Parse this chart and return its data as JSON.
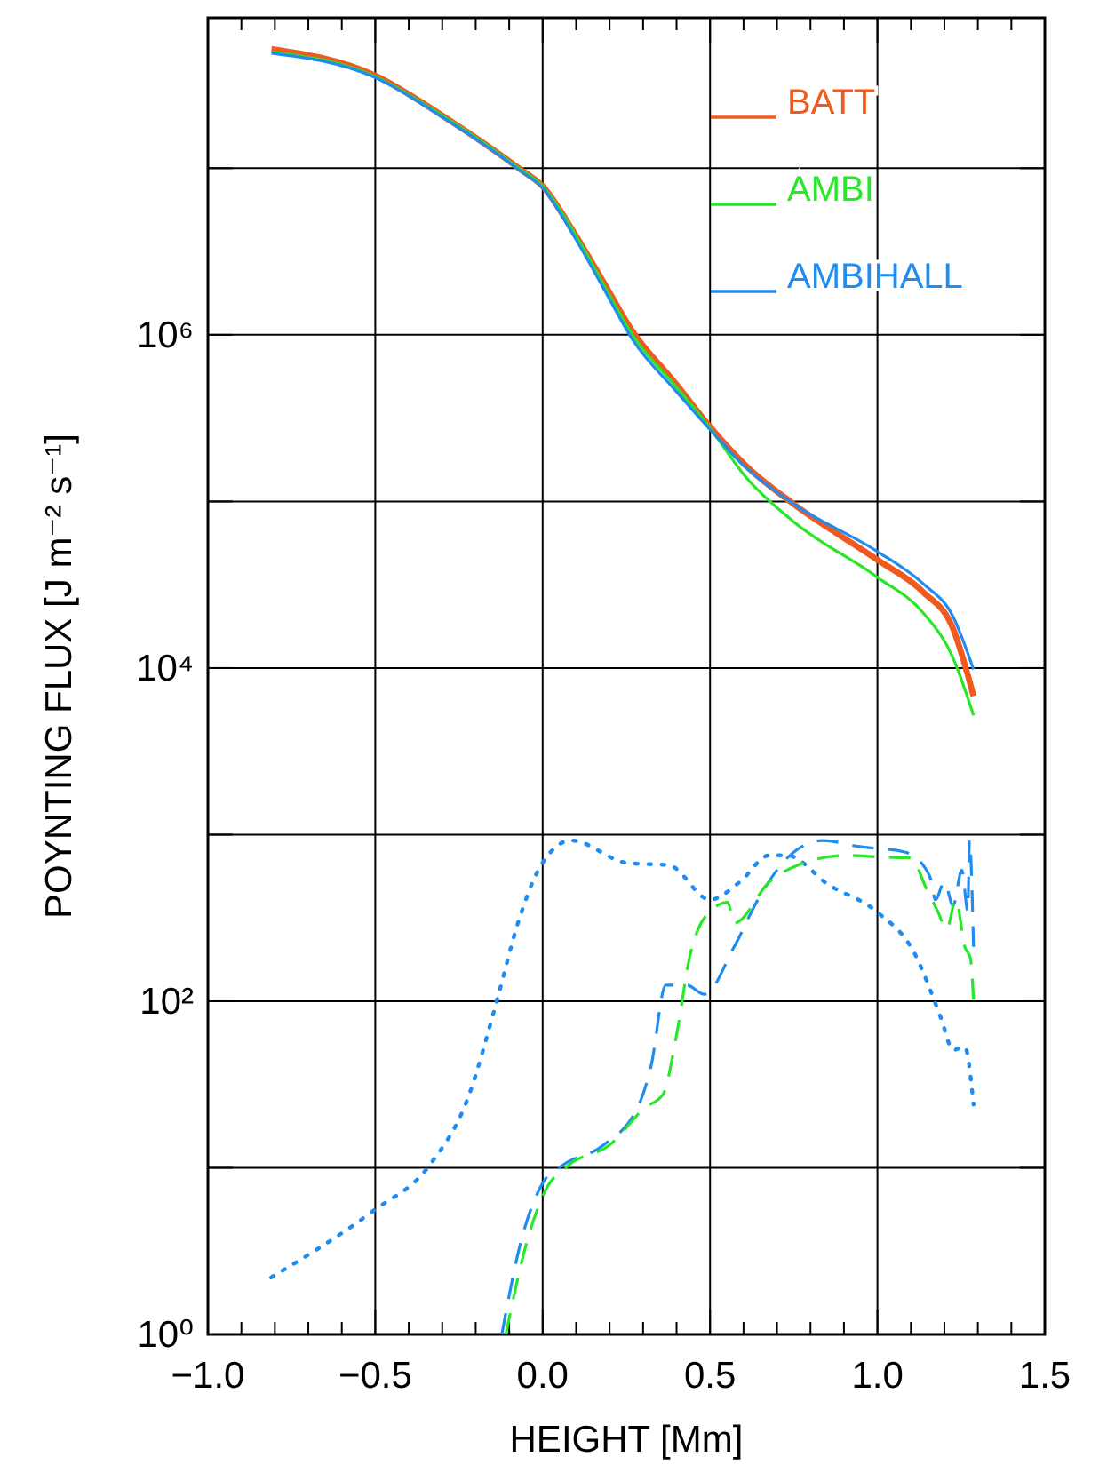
{
  "chart_data": {
    "type": "line",
    "xlabel": "HEIGHT [Mm]",
    "ylabel": "POYNTING FLUX [J m⁻² s⁻¹]",
    "log": "y",
    "grid": true,
    "legend": "top right",
    "xlim": [
      -1.0,
      1.5
    ],
    "ylim": [
      1,
      80000000
    ],
    "xticks": [
      {
        "value": -1.0,
        "label": "−1.0"
      },
      {
        "value": -0.9,
        "label": null
      },
      {
        "value": -0.8,
        "label": null
      },
      {
        "value": -0.7,
        "label": null
      },
      {
        "value": -0.6,
        "label": null
      },
      {
        "value": -0.5,
        "label": "−0.5"
      },
      {
        "value": -0.4,
        "label": null
      },
      {
        "value": -0.3,
        "label": null
      },
      {
        "value": -0.2,
        "label": null
      },
      {
        "value": -0.1,
        "label": null
      },
      {
        "value": 0,
        "label": "0.0"
      },
      {
        "value": 0.1,
        "label": null
      },
      {
        "value": 0.2,
        "label": null
      },
      {
        "value": 0.3,
        "label": null
      },
      {
        "value": 0.4,
        "label": null
      },
      {
        "value": 0.5,
        "label": "0.5"
      },
      {
        "value": 0.6,
        "label": null
      },
      {
        "value": 0.7,
        "label": null
      },
      {
        "value": 0.8,
        "label": null
      },
      {
        "value": 0.9,
        "label": null
      },
      {
        "value": 1.0,
        "label": "1.0"
      },
      {
        "value": 1.1,
        "label": null
      },
      {
        "value": 1.2,
        "label": null
      },
      {
        "value": 1.3,
        "label": null
      },
      {
        "value": 1.4,
        "label": null
      },
      {
        "value": 1.5,
        "label": "1.5"
      }
    ],
    "yticks": [
      {
        "value": 1,
        "label": "10⁰"
      },
      {
        "value": 10,
        "label": null
      },
      {
        "value": 100,
        "label": "10²"
      },
      {
        "value": 1000,
        "label": null
      },
      {
        "value": 10000,
        "label": "10⁴"
      },
      {
        "value": 100000,
        "label": null
      },
      {
        "value": 1000000,
        "label": "10⁶"
      },
      {
        "value": 10000000,
        "label": null
      }
    ],
    "series": [
      {
        "name": "BATT",
        "color": "#f05a1e",
        "line_style": "solid",
        "x": [
          -0.81,
          -0.5,
          -0.295,
          -0.065,
          0.0,
          0.094,
          0.182,
          0.271,
          0.394,
          0.5,
          0.607,
          0.748,
          1.0,
          1.137,
          1.225,
          1.287
        ],
        "values": [
          52000000,
          36000000,
          20400000,
          9800000,
          7800000,
          4100000,
          2070000,
          1030000,
          520000,
          280000,
          164000,
          97000,
          44600,
          28500,
          17400,
          6800
        ]
      },
      {
        "name": "AMBI",
        "color": "#28e628",
        "line_style": "solid",
        "x": [
          -0.81,
          -0.5,
          -0.295,
          -0.065,
          0.0,
          0.094,
          0.182,
          0.271,
          0.394,
          0.5,
          0.607,
          0.748,
          1.0,
          1.137,
          1.225,
          1.287
        ],
        "values": [
          50000000,
          35500000,
          20400000,
          9800000,
          7800000,
          4100000,
          2000000,
          980000,
          500000,
          275000,
          140000,
          76000,
          35000,
          21400,
          11600,
          5200
        ]
      },
      {
        "name": "AMBIHALL",
        "color": "#1e8cf0",
        "line_style": "solid",
        "x": [
          -0.81,
          -0.5,
          -0.295,
          -0.065,
          0.0,
          0.094,
          0.182,
          0.271,
          0.394,
          0.5,
          0.607,
          0.748,
          1.0,
          1.137,
          1.225,
          1.287
        ],
        "values": [
          49000000,
          35000000,
          20000000,
          9600000,
          7600000,
          3900000,
          1900000,
          920000,
          470000,
          270000,
          160000,
          97000,
          50000,
          32000,
          20500,
          9800
        ]
      },
      {
        "color": "#1e8cf0",
        "line_style": "dotted",
        "x": [
          -0.811,
          -0.507,
          -0.339,
          -0.224,
          -0.136,
          -0.074,
          -0.008,
          0.085,
          0.253,
          0.377,
          0.5,
          0.589,
          0.677,
          0.73,
          0.854,
          0.996,
          1.11,
          1.19,
          1.226,
          1.261,
          1.287
        ],
        "values": [
          2.2,
          5.5,
          10.3,
          26,
          102,
          294,
          638,
          922,
          676,
          655,
          407,
          520,
          751,
          751,
          500,
          347,
          195,
          79,
          51,
          53,
          24
        ]
      },
      {
        "color": "#1e8cf0",
        "line_style": "dashed",
        "x": [
          -0.122,
          -0.065,
          0.0,
          0.058,
          0.182,
          0.288,
          0.324,
          0.368,
          0.43,
          0.483,
          0.572,
          0.643,
          0.731,
          0.837,
          0.943,
          1.085,
          1.156,
          1.173,
          1.2,
          1.226,
          1.252,
          1.27,
          1.275,
          1.287
        ],
        "values": [
          1,
          3.6,
          8.1,
          10.3,
          13.7,
          24,
          41,
          125,
          125,
          110,
          212,
          407,
          725,
          922,
          850,
          783,
          565,
          407,
          520,
          375,
          612,
          347,
          922,
          212
        ]
      },
      {
        "color": "#28e628",
        "line_style": "dashed",
        "x": [
          -0.11,
          -0.047,
          0.005,
          0.076,
          0.2,
          0.306,
          0.359,
          0.403,
          0.438,
          0.5,
          0.553,
          0.572,
          0.677,
          0.766,
          0.907,
          1.013,
          1.1,
          1.145,
          1.18,
          1.207,
          1.234,
          1.261,
          1.278,
          1.287
        ],
        "values": [
          1,
          3.6,
          7.1,
          10.3,
          13.7,
          23,
          27.5,
          68,
          180,
          347,
          392,
          294,
          520,
          660,
          751,
          733,
          725,
          480,
          347,
          271,
          407,
          212,
          180,
          102
        ]
      }
    ]
  }
}
